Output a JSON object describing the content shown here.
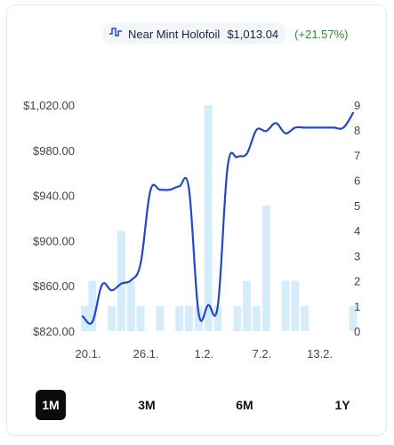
{
  "legend": {
    "icon": "step-line-icon",
    "name": "Near Mint Holofoil",
    "price": "$1,013.04",
    "change": "(+21.57%)",
    "change_color": "#2e8b3e"
  },
  "periods": {
    "items": [
      "1M",
      "3M",
      "6M",
      "1Y"
    ],
    "active": "1M"
  },
  "chart_data": {
    "type": "line",
    "x_start": "2024-01-20",
    "x_end": "2024-02-17",
    "x_ticks": [
      {
        "date": "2024-01-20",
        "label": "20.1."
      },
      {
        "date": "2024-01-26",
        "label": "26.1."
      },
      {
        "date": "2024-02-01",
        "label": "1.2."
      },
      {
        "date": "2024-02-07",
        "label": "7.2."
      },
      {
        "date": "2024-02-13",
        "label": "13.2."
      }
    ],
    "y_left": {
      "min": 820,
      "max": 1020,
      "ticks": [
        "$820.00",
        "$860.00",
        "$900.00",
        "$940.00",
        "$980.00",
        "$1,020.00"
      ],
      "tick_values": [
        820,
        860,
        900,
        940,
        980,
        1020
      ]
    },
    "y_right": {
      "min": 0,
      "max": 9,
      "ticks": [
        0,
        1,
        2,
        3,
        4,
        5,
        6,
        7,
        8,
        9
      ]
    },
    "line_color": "#2447c6",
    "bar_color": "#d5ecfb",
    "series": [
      {
        "axis": "left",
        "kind": "line",
        "points": [
          [
            "2024-01-20",
            833
          ],
          [
            "2024-01-21",
            828
          ],
          [
            "2024-01-22",
            861
          ],
          [
            "2024-01-23",
            856
          ],
          [
            "2024-01-24",
            862
          ],
          [
            "2024-01-25",
            865
          ],
          [
            "2024-01-26",
            880
          ],
          [
            "2024-01-27",
            944
          ],
          [
            "2024-01-28",
            945
          ],
          [
            "2024-01-29",
            945
          ],
          [
            "2024-01-30",
            948
          ],
          [
            "2024-01-31",
            946
          ],
          [
            "2024-02-01",
            836
          ],
          [
            "2024-02-02",
            843
          ],
          [
            "2024-02-03",
            843
          ],
          [
            "2024-02-04",
            965
          ],
          [
            "2024-02-05",
            974
          ],
          [
            "2024-02-06",
            977
          ],
          [
            "2024-02-07",
            998
          ],
          [
            "2024-02-08",
            997
          ],
          [
            "2024-02-09",
            1004
          ],
          [
            "2024-02-10",
            995
          ],
          [
            "2024-02-11",
            1000
          ],
          [
            "2024-02-12",
            1000
          ],
          [
            "2024-02-13",
            1000
          ],
          [
            "2024-02-14",
            1000
          ],
          [
            "2024-02-15",
            1000
          ],
          [
            "2024-02-16",
            1000
          ],
          [
            "2024-02-17",
            1013
          ]
        ]
      },
      {
        "axis": "right",
        "kind": "bar",
        "points": [
          [
            "2024-01-20",
            1
          ],
          [
            "2024-01-21",
            2
          ],
          [
            "2024-01-22",
            0
          ],
          [
            "2024-01-23",
            1
          ],
          [
            "2024-01-24",
            4
          ],
          [
            "2024-01-25",
            2
          ],
          [
            "2024-01-26",
            1
          ],
          [
            "2024-01-27",
            0
          ],
          [
            "2024-01-28",
            1
          ],
          [
            "2024-01-29",
            0
          ],
          [
            "2024-01-30",
            1
          ],
          [
            "2024-01-31",
            1
          ],
          [
            "2024-02-01",
            1
          ],
          [
            "2024-02-02",
            9
          ],
          [
            "2024-02-03",
            1
          ],
          [
            "2024-02-04",
            0
          ],
          [
            "2024-02-05",
            1
          ],
          [
            "2024-02-06",
            2
          ],
          [
            "2024-02-07",
            1
          ],
          [
            "2024-02-08",
            5
          ],
          [
            "2024-02-09",
            0
          ],
          [
            "2024-02-10",
            2
          ],
          [
            "2024-02-11",
            2
          ],
          [
            "2024-02-12",
            1
          ],
          [
            "2024-02-13",
            0
          ],
          [
            "2024-02-14",
            0
          ],
          [
            "2024-02-15",
            0
          ],
          [
            "2024-02-16",
            0
          ],
          [
            "2024-02-17",
            1
          ]
        ]
      }
    ]
  }
}
